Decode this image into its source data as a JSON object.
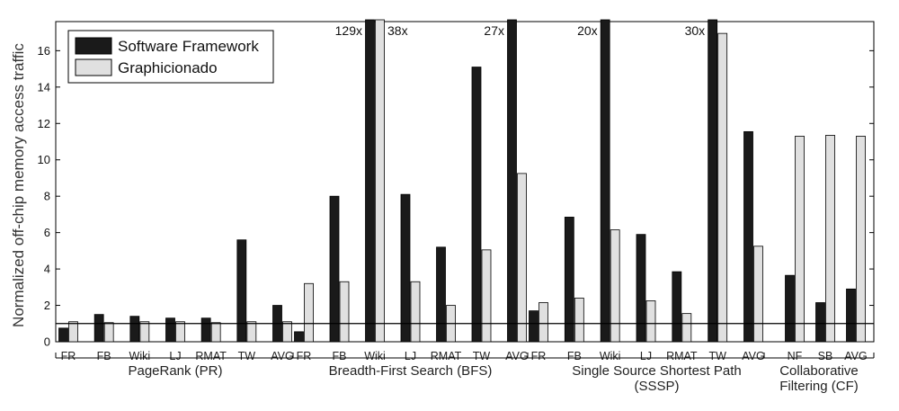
{
  "chart_data": {
    "type": "bar",
    "ylabel": "Normalized off-chip memory access traffic",
    "ylim": [
      0,
      17.6
    ],
    "yticks": [
      0,
      2,
      4,
      6,
      8,
      10,
      12,
      14,
      16
    ],
    "reference_line": 1,
    "legend_position": "top-left",
    "series": [
      {
        "name": "Software Framework",
        "color": "#1a1a1a"
      },
      {
        "name": "Graphicionado",
        "color": "#e0e0e0"
      }
    ],
    "groups": [
      {
        "label_lines": [
          "PageRank (PR)"
        ],
        "categories": [
          "FR",
          "FB",
          "Wiki",
          "LJ",
          "RMAT",
          "TW",
          "AVG"
        ],
        "software": [
          0.75,
          1.5,
          1.4,
          1.3,
          1.3,
          5.6,
          2.0
        ],
        "graphicionado": [
          1.1,
          1.05,
          1.1,
          1.1,
          1.05,
          1.1,
          1.1
        ],
        "overflow_labels": [
          "",
          "",
          "",
          "",
          "",
          "",
          ""
        ]
      },
      {
        "label_lines": [
          "Breadth-First Search (BFS)"
        ],
        "categories": [
          "FR",
          "FB",
          "Wiki",
          "LJ",
          "RMAT",
          "TW",
          "AVG"
        ],
        "software": [
          0.55,
          8.0,
          129,
          8.1,
          5.2,
          15.1,
          27
        ],
        "graphicionado": [
          3.2,
          3.3,
          38,
          3.3,
          2.0,
          5.05,
          9.25
        ],
        "overflow_labels": [
          "",
          "",
          "129x",
          "",
          "",
          "",
          "27x"
        ],
        "overflow_labels_g": [
          "",
          "",
          "38x",
          "",
          "",
          "",
          ""
        ]
      },
      {
        "label_lines": [
          "Single Source Shortest Path",
          "(SSSP)"
        ],
        "categories": [
          "FR",
          "FB",
          "Wiki",
          "LJ",
          "RMAT",
          "TW",
          "AVG"
        ],
        "software": [
          1.7,
          6.85,
          20,
          5.9,
          3.85,
          30,
          11.55
        ],
        "graphicionado": [
          2.15,
          2.4,
          6.15,
          2.25,
          1.55,
          16.95,
          5.25
        ],
        "overflow_labels": [
          "",
          "",
          "20x",
          "",
          "",
          "30x",
          ""
        ]
      },
      {
        "label_lines": [
          "Collaborative",
          "Filtering (CF)"
        ],
        "categories": [
          "NF",
          "SB",
          "AVG"
        ],
        "software": [
          3.65,
          2.15,
          2.9
        ],
        "graphicionado": [
          11.3,
          11.35,
          11.3
        ],
        "overflow_labels": [
          "",
          "",
          ""
        ]
      }
    ]
  }
}
